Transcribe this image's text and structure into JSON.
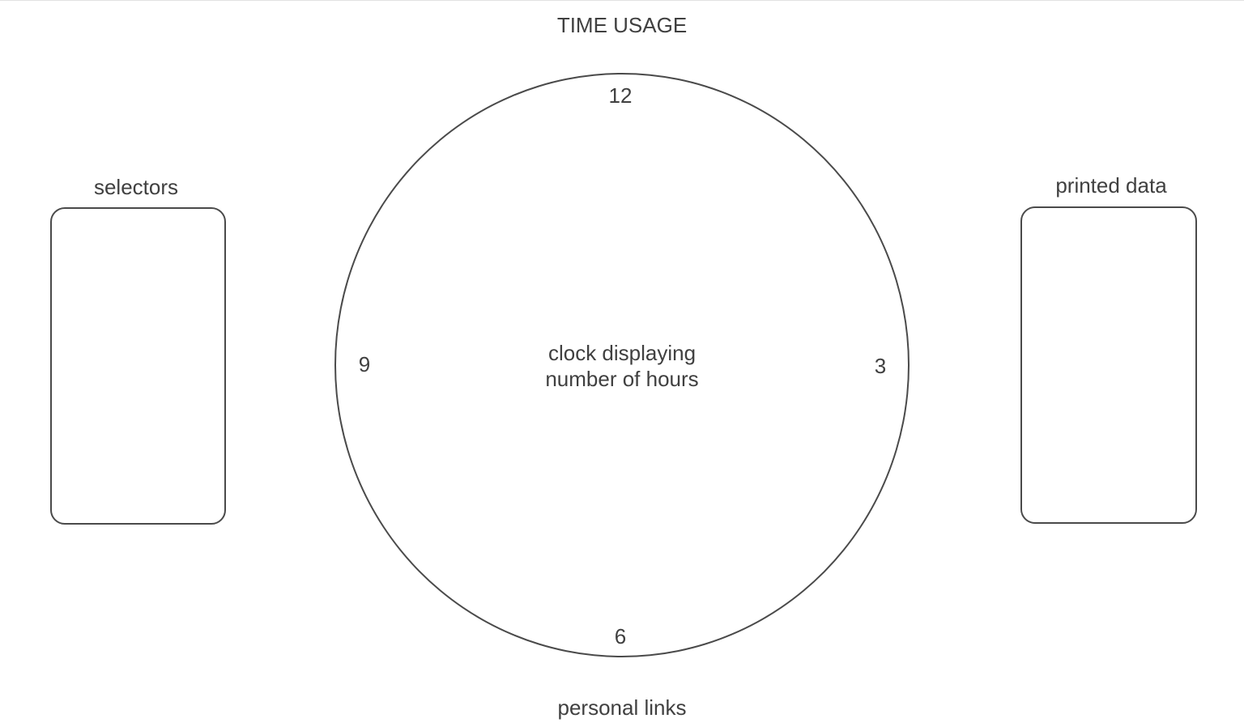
{
  "title": "TIME USAGE",
  "left_panel": {
    "label": "selectors"
  },
  "right_panel": {
    "label": "printed data"
  },
  "clock": {
    "numbers": {
      "twelve": "12",
      "three": "3",
      "six": "6",
      "nine": "9"
    },
    "center_line1": "clock displaying",
    "center_line2": "number of hours"
  },
  "footer": {
    "label": "personal links"
  },
  "colors": {
    "stroke": "#4a4a4a",
    "text": "#404040",
    "background": "#ffffff"
  }
}
